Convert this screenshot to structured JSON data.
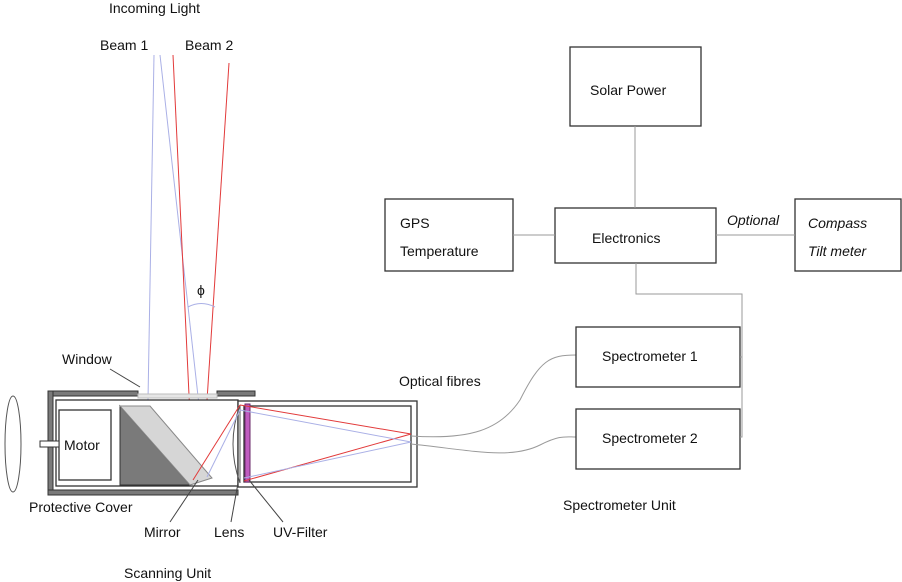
{
  "labels": {
    "incoming_light": "Incoming Light",
    "beam1": "Beam 1",
    "beam2": "Beam 2",
    "phi": "ϕ",
    "window": "Window",
    "motor": "Motor",
    "protective_cover": "Protective Cover",
    "mirror": "Mirror",
    "lens": "Lens",
    "uv_filter": "UV-Filter",
    "scanning_unit": "Scanning Unit",
    "optical_fibres": "Optical fibres",
    "spectrometer1": "Spectrometer 1",
    "spectrometer2": "Spectrometer 2",
    "spectrometer_unit": "Spectrometer Unit",
    "solar_power": "Solar Power",
    "gps": "GPS",
    "temperature": "Temperature",
    "electronics": "Electronics",
    "optional": "Optional",
    "compass": "Compass",
    "tilt_meter": "Tilt meter"
  },
  "colors": {
    "beam1": "#aab0e6",
    "beam2": "#e23a3a",
    "wires": "#9a9a9a",
    "outline": "#333333",
    "mirror_dark": "#7a7a7a",
    "mirror_light": "#d6d6d6",
    "filter": "#c05cc0"
  }
}
